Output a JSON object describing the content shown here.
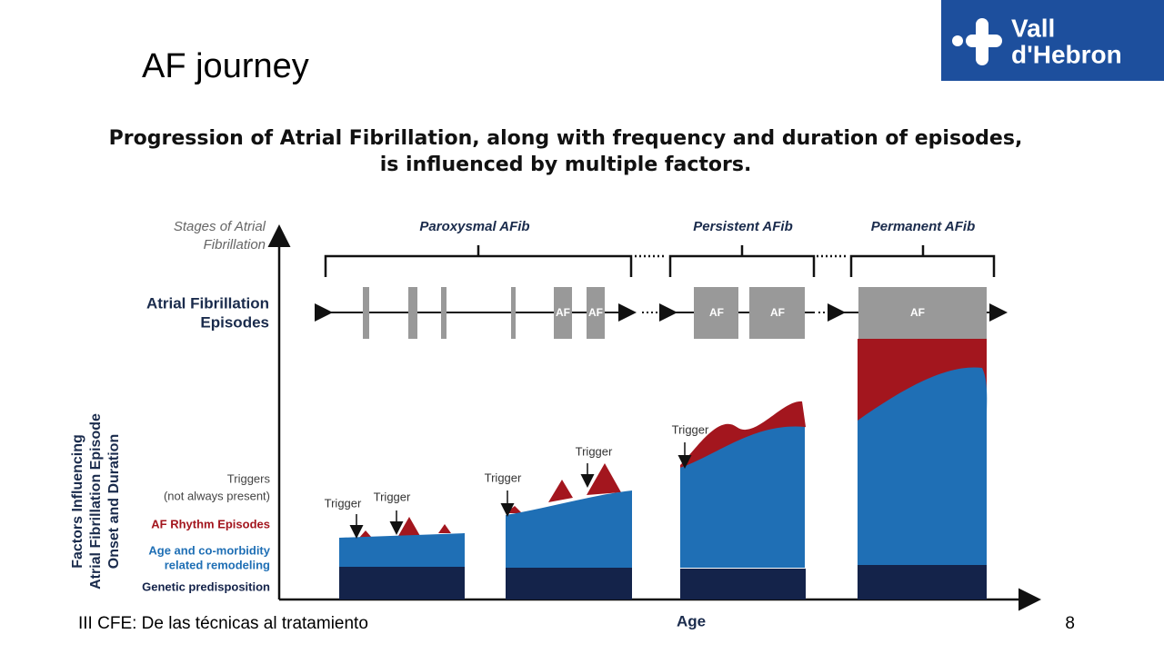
{
  "header": {
    "title": "AF journey",
    "logo": [
      "Vall",
      "d'Hebron"
    ]
  },
  "diagram": {
    "title": [
      "Progression of Atrial Fibrillation, along with frequency and duration of episodes,",
      "is influenced by multiple factors."
    ],
    "stages_label": [
      "Stages of Atrial",
      "Fibrillation"
    ],
    "stages": [
      "Paroxysmal AFib",
      "Persistent AFib",
      "Permanent AFib"
    ],
    "episodes_label": [
      "Atrial Fibrillation",
      "Episodes"
    ],
    "episodes": [
      "AF",
      "AF",
      "AF",
      "AF",
      "AF"
    ],
    "factors_axis_label": [
      "Factors Influencing",
      "Atrial Fibrillation Episode",
      "Onset and Duration"
    ],
    "factors": [
      "Triggers",
      "(not always present)",
      "AF Rhythm Episodes",
      "Age and co-morbidity",
      "related remodeling",
      "Genetic predisposition"
    ],
    "triggers": [
      "Trigger",
      "Trigger",
      "Trigger",
      "Trigger",
      "Trigger"
    ],
    "x_axis_label": "Age"
  },
  "footer": {
    "text": "III CFE: De las técnicas al tratamiento",
    "page": "8"
  }
}
